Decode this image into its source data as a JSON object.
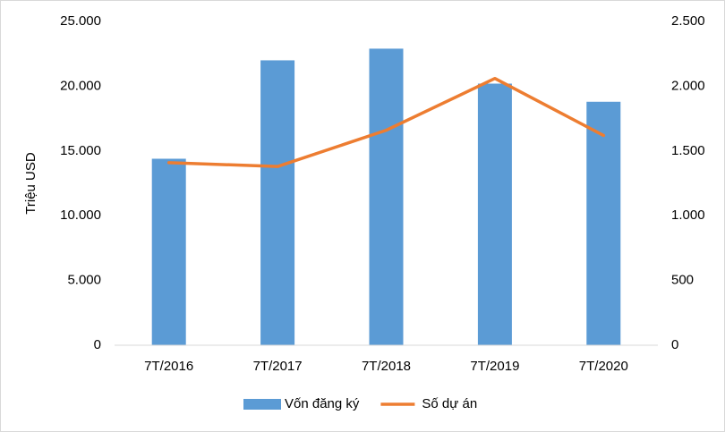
{
  "chart_data": {
    "type": "combo",
    "y_label": "Triệu USD",
    "categories": [
      "7T/2016",
      "7T/2017",
      "7T/2018",
      "7T/2019",
      "7T/2020"
    ],
    "series": [
      {
        "name": "Vốn đăng ký",
        "type": "bar",
        "color": "#5b9bd5",
        "values": [
          14400,
          22000,
          22900,
          20200,
          18800
        ]
      },
      {
        "name": "Số dự án",
        "type": "line",
        "axis": "y2",
        "color": "#ed7d31",
        "values": [
          1410,
          1380,
          1660,
          2060,
          1620
        ]
      }
    ],
    "ylim": [
      0,
      25000
    ],
    "yticks": [
      0,
      {
        "value": 5000,
        "label": "5.000"
      },
      {
        "value": 10000,
        "label": "10.000"
      },
      {
        "value": 15000,
        "label": "15.000"
      },
      {
        "value": 20000,
        "label": "20.000"
      },
      {
        "value": 25000,
        "label": "25.000"
      }
    ],
    "y2lim": [
      0,
      2500
    ],
    "y2ticks": [
      0,
      500,
      {
        "value": 1000,
        "label": "1.000"
      },
      {
        "value": 1500,
        "label": "1.500"
      },
      {
        "value": 2000,
        "label": "2.000"
      },
      {
        "value": 2500,
        "label": "2.500"
      }
    ],
    "grid": false,
    "legend": "bottom"
  }
}
